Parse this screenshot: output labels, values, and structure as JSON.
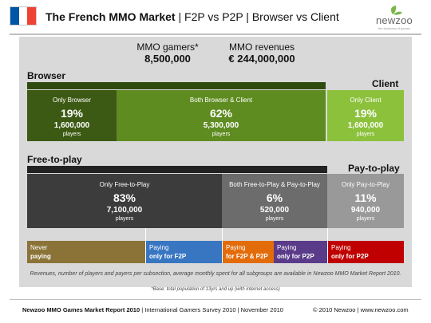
{
  "header": {
    "title_bold": "The French MMO Market",
    "title_rest": "| F2P vs P2P | Browser vs Client",
    "flag_colors": [
      "#0055a4",
      "#ffffff",
      "#ef4135"
    ],
    "logo_name": "newzoo",
    "logo_tagline": "the business of games",
    "logo_color": "#7ab648"
  },
  "summary": {
    "gamers_label": "MMO gamers*",
    "gamers_value": "8,500,000",
    "revenues_label": "MMO revenues",
    "revenues_value": "€ 244,000,000"
  },
  "chart_data": [
    {
      "type": "bar",
      "title": "",
      "section_labels": [
        "Browser",
        "Client"
      ],
      "categories": [
        "Only Browser",
        "Both Browser & Client",
        "Only Client"
      ],
      "percent_labels": [
        "19%",
        "62%",
        "19%"
      ],
      "player_labels": [
        "1,600,000",
        "5,300,000",
        "1,600,000"
      ],
      "values": [
        1600000,
        5300000,
        1600000
      ],
      "unit": "players",
      "colors": [
        "#3d5a14",
        "#5f8c21",
        "#8cc13c"
      ]
    },
    {
      "type": "bar",
      "title": "",
      "section_labels": [
        "Free-to-play",
        "Pay-to-play"
      ],
      "categories": [
        "Only Free-to-Play",
        "Both Free-to-Play & Pay-to-Play",
        "Only Pay-to-Play"
      ],
      "percent_labels": [
        "83%",
        "6%",
        "11%"
      ],
      "player_labels": [
        "7,100,000",
        "520,000",
        "940,000"
      ],
      "values": [
        7100000,
        520000,
        940000
      ],
      "unit": "players",
      "colors": [
        "#3c3c3c",
        "#6c6c6c",
        "#999999"
      ]
    },
    {
      "type": "bar",
      "title": "",
      "categories": [
        "Never paying",
        "Paying only for F2P",
        "Paying for F2P & P2P",
        "Paying only for P2P",
        "Paying only for P2P"
      ],
      "segments": [
        {
          "line1": "Never",
          "line2": "paying",
          "color": "#8b7338"
        },
        {
          "line1": "Paying",
          "line2": "only for F2P",
          "color": "#3876c2"
        },
        {
          "line1": "Paying",
          "line2": "for F2P & P2P",
          "color": "#e36c0a"
        },
        {
          "line1": "Paying",
          "line2": "only for P2P",
          "color": "#5a3b8a"
        },
        {
          "line1": "Paying",
          "line2": "only for P2P",
          "color": "#c00000"
        }
      ]
    }
  ],
  "notes": {
    "revenue_note": "Revenues, number of players and payers per subsection, average monthly spent for all subgroups are available in Newzoo MMO Market Report 2010.",
    "base_note": "*Base: total population of 13yrs and up (with internet access)"
  },
  "footer": {
    "left_bold": "Newzoo MMO Games Market Report 2010",
    "left_rest": "| International Gamers Survey 2010 | November 2010",
    "right": "© 2010 Newzoo | www.newzoo.com"
  }
}
